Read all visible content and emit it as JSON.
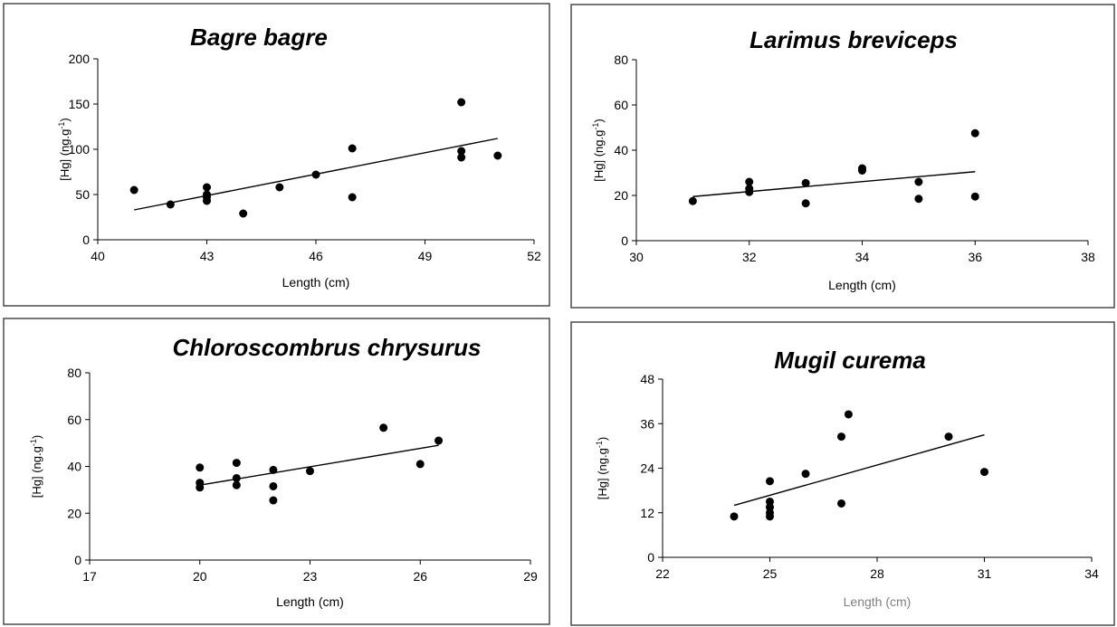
{
  "chart_data": [
    {
      "type": "scatter",
      "title": "Bagre bagre",
      "xlabel": "Length (cm)",
      "ylabel": "[Hg] (ng.g",
      "ylabel_sup": "-1",
      "ylabel_close": ")",
      "xlim": [
        40,
        52
      ],
      "ylim": [
        0,
        200
      ],
      "xticks": [
        40,
        43,
        46,
        49,
        52
      ],
      "yticks": [
        0,
        50,
        100,
        150,
        200
      ],
      "series": [
        {
          "x": [
            41,
            42,
            43,
            43,
            43,
            43,
            44,
            45,
            46,
            47,
            47,
            50,
            50,
            50,
            51
          ],
          "y": [
            55,
            39,
            58,
            50,
            47,
            43,
            29,
            58,
            72,
            101,
            47,
            152,
            98,
            91,
            93
          ]
        }
      ],
      "trendline": {
        "x": [
          41,
          51
        ],
        "y": [
          33,
          112
        ]
      }
    },
    {
      "type": "scatter",
      "title": "Larimus breviceps",
      "xlabel": "Length (cm)",
      "ylabel": "[Hg] (ng.g",
      "ylabel_sup": "-1",
      "ylabel_close": ")",
      "xlim": [
        30,
        38
      ],
      "ylim": [
        0,
        80
      ],
      "xticks": [
        30,
        32,
        34,
        36,
        38
      ],
      "yticks": [
        0,
        20,
        40,
        60,
        80
      ],
      "series": [
        {
          "x": [
            31,
            32,
            32,
            32,
            33,
            33,
            34,
            34,
            35,
            35,
            36,
            36
          ],
          "y": [
            17.5,
            26,
            23,
            21.5,
            25.5,
            16.5,
            32,
            31,
            26,
            18.5,
            47.5,
            19.5
          ]
        }
      ],
      "trendline": {
        "x": [
          31,
          36
        ],
        "y": [
          19.5,
          30.5
        ]
      }
    },
    {
      "type": "scatter",
      "title": "Chloroscombrus chrysurus",
      "xlabel": "Length (cm)",
      "ylabel": "[Hg] (ng.g",
      "ylabel_sup": "-1",
      "ylabel_close": ")",
      "xlim": [
        17,
        29
      ],
      "ylim": [
        0,
        80
      ],
      "xticks": [
        17,
        20,
        23,
        26,
        29
      ],
      "yticks": [
        0,
        20,
        40,
        60,
        80
      ],
      "series": [
        {
          "x": [
            20,
            20,
            20,
            21,
            21,
            21,
            22,
            22,
            22,
            23,
            25,
            26,
            26.5
          ],
          "y": [
            39.5,
            33,
            31,
            41.5,
            35,
            32,
            38.5,
            31.5,
            25.5,
            38,
            56.5,
            41,
            51
          ]
        }
      ],
      "trendline": {
        "x": [
          20,
          26.5
        ],
        "y": [
          32,
          49
        ]
      }
    },
    {
      "type": "scatter",
      "title": "Mugil curema",
      "xlabel": "Length (cm)",
      "ylabel": "[Hg] (ng.g",
      "ylabel_sup": "-1",
      "ylabel_close": ")",
      "xlim": [
        22,
        34
      ],
      "ylim": [
        0,
        48
      ],
      "xticks": [
        22,
        25,
        28,
        31,
        34
      ],
      "yticks": [
        0,
        12,
        24,
        36,
        48
      ],
      "series": [
        {
          "x": [
            24,
            25,
            25,
            25,
            25,
            25,
            26,
            27,
            27,
            27.2,
            30,
            31
          ],
          "y": [
            11,
            20.5,
            15,
            13.5,
            12,
            11,
            22.5,
            32.5,
            14.5,
            38.5,
            32.5,
            23
          ]
        }
      ],
      "trendline": {
        "x": [
          24,
          31
        ],
        "y": [
          14,
          33
        ]
      }
    }
  ]
}
